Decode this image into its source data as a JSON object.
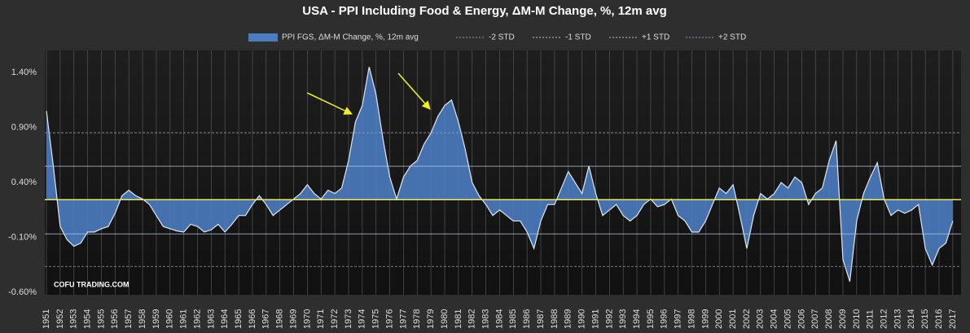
{
  "chart_data": {
    "type": "area",
    "title": "USA - PPI Including Food & Energy, ΔM-M Change, %, 12m avg",
    "watermark": "COFU TRADING.COM",
    "series": [
      {
        "name": "PPI FGS, ΔM-M  Change, %, 12m avg",
        "color": "#4a7cc0",
        "x": [
          1951,
          1951.5,
          1952,
          1952.5,
          1953,
          1953.5,
          1954,
          1954.5,
          1955,
          1955.5,
          1956,
          1956.5,
          1957,
          1957.5,
          1958,
          1958.5,
          1959,
          1959.5,
          1960,
          1960.5,
          1961,
          1961.5,
          1962,
          1962.5,
          1963,
          1963.5,
          1964,
          1964.5,
          1965,
          1965.5,
          1966,
          1966.5,
          1967,
          1967.5,
          1968,
          1968.5,
          1969,
          1969.5,
          1970,
          1970.5,
          1971,
          1971.5,
          1972,
          1972.5,
          1973,
          1973.5,
          1974,
          1974.5,
          1975,
          1975.5,
          1976,
          1976.5,
          1977,
          1977.5,
          1978,
          1978.5,
          1979,
          1979.5,
          1980,
          1980.5,
          1981,
          1981.5,
          1982,
          1982.5,
          1983,
          1983.5,
          1984,
          1984.5,
          1985,
          1985.5,
          1986,
          1986.5,
          1987,
          1987.5,
          1988,
          1988.5,
          1989,
          1989.5,
          1990,
          1990.5,
          1991,
          1991.5,
          1992,
          1992.5,
          1993,
          1993.5,
          1994,
          1994.5,
          1995,
          1995.5,
          1996,
          1996.5,
          1997,
          1997.5,
          1998,
          1998.5,
          1999,
          1999.5,
          2000,
          2000.5,
          2001,
          2001.5,
          2002,
          2002.5,
          2003,
          2003.5,
          2004,
          2004.5,
          2005,
          2005.5,
          2006,
          2006.5,
          2007,
          2007.5,
          2008,
          2008.5,
          2009,
          2009.5,
          2010,
          2010.5,
          2011,
          2011.5,
          2012,
          2012.5,
          2013,
          2013.5,
          2014,
          2014.5,
          2015,
          2015.5,
          2016,
          2016.5,
          2017
        ],
        "values": [
          1.05,
          0.55,
          0.0,
          -0.12,
          -0.18,
          -0.15,
          -0.05,
          -0.05,
          -0.02,
          0.0,
          0.12,
          0.28,
          0.33,
          0.28,
          0.25,
          0.2,
          0.1,
          0.0,
          -0.02,
          -0.04,
          -0.05,
          0.02,
          0.0,
          -0.05,
          -0.03,
          0.02,
          -0.05,
          0.02,
          0.1,
          0.1,
          0.2,
          0.28,
          0.2,
          0.1,
          0.15,
          0.2,
          0.25,
          0.3,
          0.38,
          0.3,
          0.25,
          0.33,
          0.3,
          0.35,
          0.6,
          0.95,
          1.1,
          1.45,
          1.2,
          0.8,
          0.45,
          0.25,
          0.45,
          0.55,
          0.6,
          0.75,
          0.85,
          1.0,
          1.1,
          1.15,
          0.95,
          0.7,
          0.4,
          0.28,
          0.2,
          0.1,
          0.15,
          0.1,
          0.05,
          0.05,
          -0.05,
          -0.2,
          0.05,
          0.2,
          0.2,
          0.35,
          0.5,
          0.4,
          0.3,
          0.55,
          0.3,
          0.1,
          0.15,
          0.2,
          0.1,
          0.05,
          0.1,
          0.2,
          0.25,
          0.18,
          0.2,
          0.25,
          0.1,
          0.05,
          -0.05,
          -0.05,
          0.05,
          0.2,
          0.35,
          0.3,
          0.38,
          0.1,
          -0.2,
          0.1,
          0.3,
          0.25,
          0.3,
          0.4,
          0.35,
          0.45,
          0.4,
          0.2,
          0.3,
          0.35,
          0.6,
          0.78,
          -0.3,
          -0.5,
          0.05,
          0.3,
          0.45,
          0.58,
          0.25,
          0.1,
          0.15,
          0.12,
          0.15,
          0.2,
          -0.2,
          -0.35,
          -0.2,
          -0.15,
          0.05
        ]
      }
    ],
    "baseline": 0.244,
    "reference_lines": [
      {
        "name": "-2 STD",
        "value": -0.363,
        "color": "#9a8fc8"
      },
      {
        "name": "-1 STD",
        "value": -0.067,
        "color": "#b0c4e8"
      },
      {
        "name": "+1 STD",
        "value": 0.548,
        "color": "#b0c4e8"
      },
      {
        "name": "+2 STD",
        "value": 0.852,
        "color": "#9a8fc8"
      }
    ],
    "ylim": [
      -0.62,
      1.6
    ],
    "yticks": [
      {
        "value": -0.6,
        "label": "-0.60%"
      },
      {
        "value": -0.1,
        "label": "-0.10%"
      },
      {
        "value": 0.4,
        "label": "0.40%"
      },
      {
        "value": 0.9,
        "label": "0.90%"
      },
      {
        "value": 1.4,
        "label": "1.40%"
      }
    ],
    "xlim": [
      1950.88,
      2017.6
    ],
    "xticks": [
      1951,
      1952,
      1953,
      1954,
      1955,
      1956,
      1957,
      1958,
      1959,
      1960,
      1961,
      1962,
      1963,
      1964,
      1965,
      1966,
      1967,
      1968,
      1969,
      1970,
      1971,
      1972,
      1973,
      1974,
      1975,
      1976,
      1977,
      1978,
      1979,
      1980,
      1981,
      1982,
      1983,
      1984,
      1985,
      1986,
      1987,
      1988,
      1989,
      1990,
      1991,
      1992,
      1993,
      1994,
      1995,
      1996,
      1997,
      1998,
      1999,
      2000,
      2001,
      2002,
      2003,
      2004,
      2005,
      2006,
      2007,
      2008,
      2009,
      2010,
      2011,
      2012,
      2013,
      2014,
      2015,
      2016,
      2017
    ],
    "grid": true
  }
}
